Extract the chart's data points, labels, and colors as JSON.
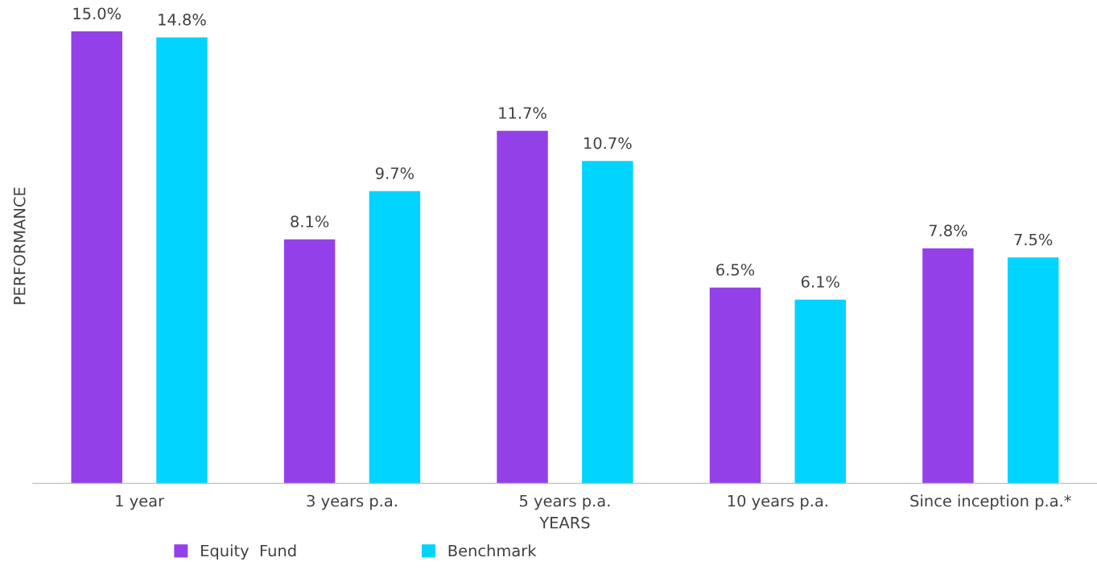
{
  "chart_data": {
    "type": "bar",
    "xlabel": "YEARS",
    "ylabel": "PERFORMANCE",
    "categories": [
      "1 year",
      "3 years p.a.",
      "5 years p.a.",
      "10 years p.a.",
      "Since inception p.a.*"
    ],
    "series": [
      {
        "name": "Equity  Fund",
        "color": "#9440e8",
        "values": [
          15.0,
          8.1,
          11.7,
          6.5,
          7.8
        ],
        "value_labels": [
          "15.0%",
          "8.1%",
          "11.7%",
          "6.5%",
          "7.8%"
        ]
      },
      {
        "name": "Benchmark",
        "color": "#00d4ff",
        "values": [
          14.8,
          9.7,
          10.7,
          6.1,
          7.5
        ],
        "value_labels": [
          "14.8%",
          "9.7%",
          "10.7%",
          "6.1%",
          "7.5%"
        ]
      }
    ],
    "grid": false,
    "legend": "bottom",
    "tick_labels": "x"
  }
}
